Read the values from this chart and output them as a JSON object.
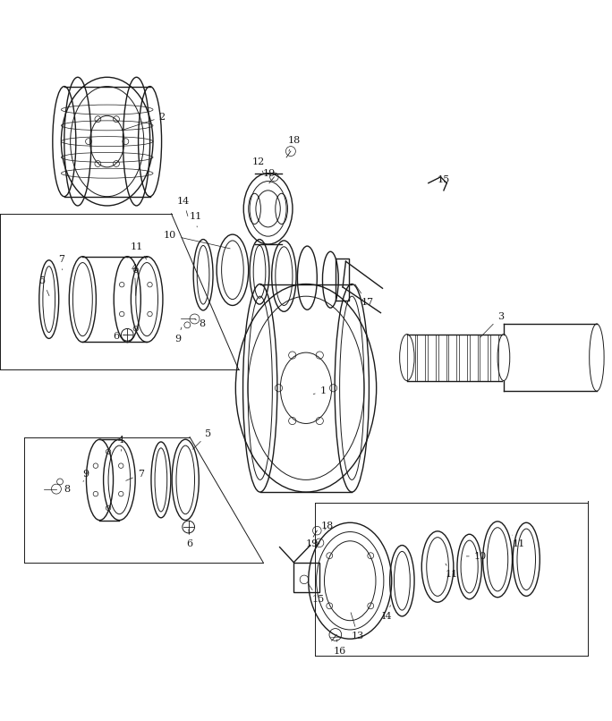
{
  "background_color": "#ffffff",
  "drawing_color": "#1a1a1a",
  "lw_main": 1.0,
  "lw_thin": 0.7
}
